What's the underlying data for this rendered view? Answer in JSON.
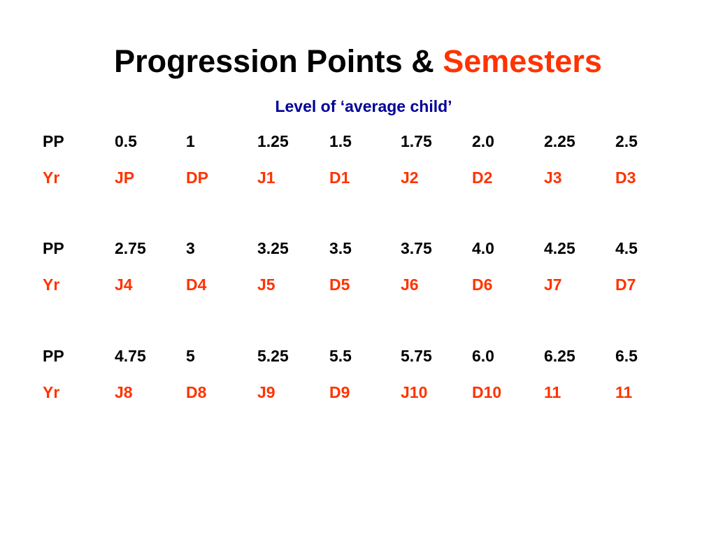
{
  "title": {
    "main": "Progression Points &",
    "accent": "Semesters"
  },
  "subtitle": "Level of ‘average child’",
  "colors": {
    "text": "#000000",
    "accent": "#ff3300",
    "subtitle": "#000099",
    "background": "#ffffff"
  },
  "table": {
    "groups": [
      {
        "pp": [
          "PP",
          "0.5",
          "1",
          "1.25",
          "1.5",
          "1.75",
          "2.0",
          "2.25",
          "2.5"
        ],
        "yr": [
          "Yr",
          "JP",
          "DP",
          "J1",
          "D1",
          "J2",
          "D2",
          "J3",
          "D3"
        ]
      },
      {
        "pp": [
          "PP",
          "2.75",
          "3",
          "3.25",
          "3.5",
          "3.75",
          "4.0",
          "4.25",
          "4.5"
        ],
        "yr": [
          "Yr",
          "J4",
          "D4",
          "J5",
          "D5",
          "J6",
          "D6",
          "J7",
          "D7"
        ]
      },
      {
        "pp": [
          "PP",
          "4.75",
          "5",
          "5.25",
          "5.5",
          "5.75",
          "6.0",
          "6.25",
          "6.5"
        ],
        "yr": [
          "Yr",
          "J8",
          "D8",
          "J9",
          "D9",
          "J10",
          "D10",
          "11",
          "11"
        ]
      }
    ]
  }
}
